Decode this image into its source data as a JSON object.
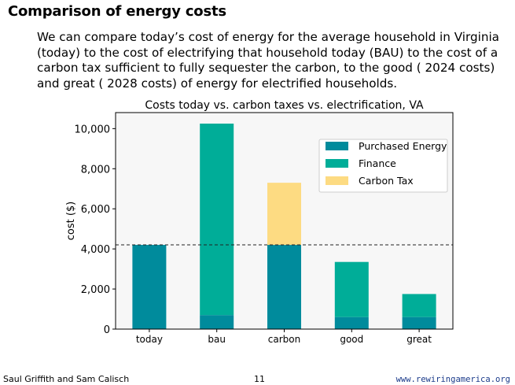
{
  "slide": {
    "title": "Comparison of energy costs",
    "intro": "We can compare today’s cost of energy for the average household in Virginia (today) to the cost of electrifying that household today (BAU) to the cost of a carbon tax sufficient to fully sequester the carbon, to the good ( 2024 costs) and great ( 2028 costs) of energy for electrified households."
  },
  "footer": {
    "authors": "Saul Griffith and Sam Calisch",
    "page": "11",
    "url": "www.rewiringamerica.org"
  },
  "chart_data": {
    "type": "bar",
    "stacked": true,
    "title": "Costs today vs. carbon taxes vs. electrification, VA",
    "xlabel": "",
    "ylabel": "cost ($)",
    "ylim": [
      0,
      10800
    ],
    "yticks": [
      0,
      2000,
      4000,
      6000,
      8000,
      10000
    ],
    "ytick_labels": [
      "0",
      "2,000",
      "4,000",
      "6,000",
      "8,000",
      "10,000"
    ],
    "categories": [
      "today",
      "bau",
      "carbon",
      "good",
      "great"
    ],
    "series": [
      {
        "name": "Purchased Energy",
        "color": "#008b9c",
        "values": [
          4200,
          700,
          4200,
          600,
          600
        ]
      },
      {
        "name": "Finance",
        "color": "#00ad98",
        "values": [
          0,
          9550,
          0,
          2750,
          1150
        ]
      },
      {
        "name": "Carbon Tax",
        "color": "#fddb82",
        "values": [
          0,
          0,
          3100,
          0,
          0
        ]
      }
    ],
    "reference_line": {
      "value": 4200,
      "style": "dashed"
    },
    "legend_position": "top-right",
    "grid": false
  }
}
